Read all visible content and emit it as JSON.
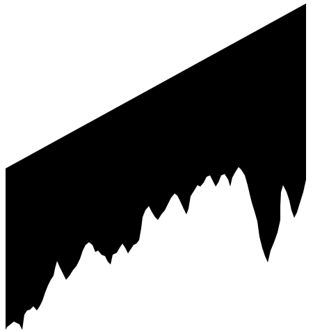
{
  "colors": {
    "background": "#ffffff",
    "shape_fill": "#000000"
  }
}
